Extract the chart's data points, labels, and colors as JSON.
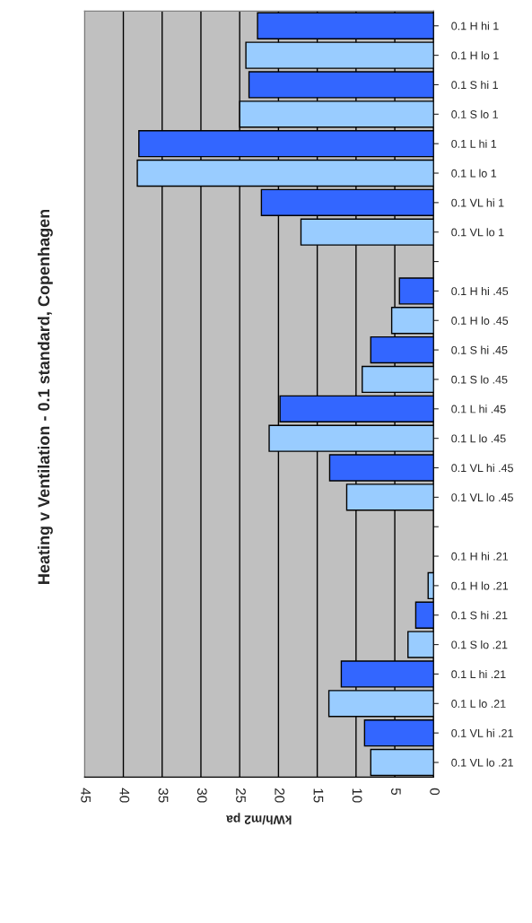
{
  "chart_data": {
    "type": "bar",
    "orientation": "horizontal",
    "title": "Heating v Ventilation - 0.1 standard, Copenhagen",
    "xlabel": "kWh/m2 pa",
    "categories": [
      "0.1 H hi 1",
      "0.1 H lo 1",
      "0.1 S hi 1",
      "0.1 S lo 1",
      "0.1 L hi 1",
      "0.1 L lo 1",
      "0.1 VL hi 1",
      "0.1 VL lo 1",
      null,
      "0.1 H hi .45",
      "0.1 H lo .45",
      "0.1 S hi .45",
      "0.1 S lo .45",
      "0.1 L hi .45",
      "0.1 L lo .45",
      "0.1 VL hi .45",
      "0.1 VL lo .45",
      null,
      "0.1 H hi .21",
      "0.1 H lo .21",
      "0.1 S hi .21",
      "0.1 S lo .21",
      "0.1 L hi .21",
      "0.1 L lo .21",
      "0.1 VL hi .21",
      "0.1 VL lo .21"
    ],
    "values": [
      22.7,
      24.2,
      23.8,
      25.0,
      38.0,
      38.2,
      22.2,
      17.1,
      null,
      4.4,
      5.4,
      8.1,
      9.2,
      19.8,
      21.2,
      13.4,
      11.2,
      null,
      null,
      0.7,
      2.3,
      3.3,
      11.9,
      13.5,
      8.9,
      8.1
    ],
    "colors": [
      "#3366ff",
      "#99ccff",
      "#3366ff",
      "#99ccff",
      "#3366ff",
      "#99ccff",
      "#3366ff",
      "#99ccff",
      "#3366ff",
      "#3366ff",
      "#99ccff",
      "#3366ff",
      "#99ccff",
      "#3366ff",
      "#99ccff",
      "#3366ff",
      "#99ccff",
      "#3366ff",
      "#3366ff",
      "#99ccff",
      "#3366ff",
      "#99ccff",
      "#3366ff",
      "#99ccff",
      "#3366ff",
      "#99ccff"
    ],
    "xlim": [
      45,
      0
    ],
    "xticks": [
      45,
      40,
      35,
      30,
      25,
      20,
      15,
      10,
      5,
      0
    ],
    "grid": "x",
    "legend": false
  }
}
